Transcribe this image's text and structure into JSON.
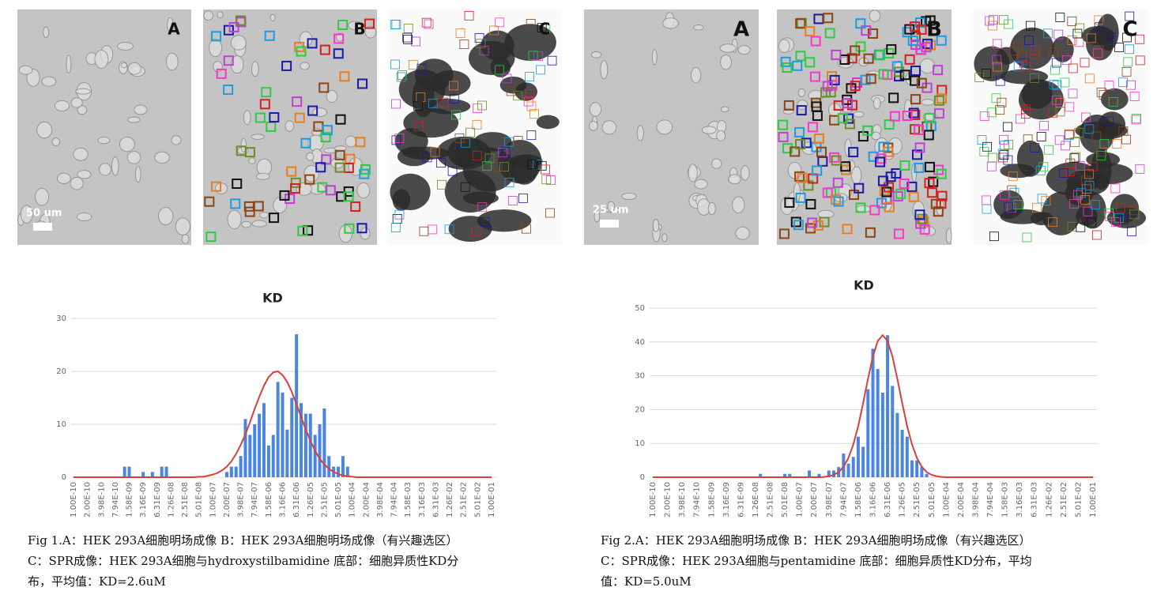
{
  "figures": [
    {
      "panels": [
        "A",
        "B",
        "C"
      ],
      "scale_bar": "50 um",
      "caption": [
        "Fig 1.A：HEK 293A细胞明场成像 B：HEK 293A细胞明场成像（有兴趣选区）",
        "C：SPR成像：HEK 293A细胞与hydroxystilbamidine  底部：细胞异质性KD分",
        "布，平均值：KD=2.6uM"
      ]
    },
    {
      "panels": [
        "A",
        "B",
        "C"
      ],
      "scale_bar": "25 um",
      "caption": [
        "Fig 2.A：HEK 293A细胞明场成像 B：HEK 293A细胞明场成像（有兴趣选区）",
        "C：SPR成像：HEK 293A细胞与pentamidine  底部：细胞异质性KD分布，平均",
        "值：KD=5.0uM"
      ]
    }
  ],
  "chart_data": [
    {
      "type": "bar",
      "title": "KD",
      "ylim": [
        0,
        30
      ],
      "yticks": [
        0,
        10,
        20,
        30
      ],
      "grid": true,
      "categories": [
        "1.00E-10",
        null,
        null,
        "2.00E-10",
        null,
        null,
        "3.98E-10",
        null,
        null,
        "7.94E-10",
        null,
        null,
        "1.58E-09",
        null,
        null,
        "3.16E-09",
        null,
        null,
        "6.31E-09",
        null,
        null,
        "1.26E-08",
        null,
        null,
        "2.51E-08",
        null,
        null,
        "5.01E-08",
        null,
        null,
        "1.00E-07",
        null,
        null,
        "2.00E-07",
        null,
        null,
        "3.98E-07",
        null,
        null,
        "7.94E-07",
        null,
        null,
        "1.58E-06",
        null,
        null,
        "3.16E-06",
        null,
        null,
        "6.31E-06",
        null,
        null,
        "1.26E-05",
        null,
        null,
        "2.51E-05",
        null,
        null,
        "5.01E-05",
        null,
        null,
        "1.00E-04",
        null,
        null,
        "2.00E-04",
        null,
        null,
        "3.98E-04",
        null,
        null,
        "7.94E-04",
        null,
        null,
        "1.58E-03",
        null,
        null,
        "3.16E-03",
        null,
        null,
        "6.31E-03",
        null,
        null,
        "1.26E-02",
        null,
        null,
        "2.51E-02",
        null,
        null,
        "5.01E-02",
        null,
        null,
        "1.00E-01"
      ],
      "series": [
        {
          "type": "bar",
          "color": "#4a86e0",
          "values": [
            0,
            0,
            0,
            0,
            0,
            0,
            0,
            0,
            0,
            0,
            0,
            2,
            2,
            0,
            0,
            1,
            0,
            1,
            0,
            2,
            2,
            0,
            0,
            0,
            0,
            0,
            0,
            0,
            0,
            0,
            0,
            0,
            0,
            1,
            2,
            2,
            4,
            11,
            8,
            10,
            12,
            14,
            6,
            8,
            18,
            16,
            9,
            15,
            27,
            14,
            12,
            12,
            8,
            10,
            13,
            4,
            2,
            2,
            4,
            2,
            0,
            0,
            0,
            0,
            0,
            0,
            0,
            0,
            0,
            0,
            0,
            0,
            0,
            0,
            0,
            0,
            0,
            0,
            0,
            0,
            0,
            0,
            0,
            0,
            0,
            0,
            0,
            0,
            0,
            0,
            0
          ]
        },
        {
          "type": "line",
          "color": "#d9403a",
          "values": [
            0,
            0,
            0,
            0,
            0,
            0,
            0,
            0,
            0,
            0,
            0,
            0,
            0,
            0,
            0,
            0,
            0,
            0,
            0,
            0,
            0,
            0,
            0,
            0,
            0,
            0,
            0,
            0.1,
            0.1,
            0.3,
            0.5,
            0.8,
            1.3,
            2.0,
            3.0,
            4.4,
            6.1,
            8.1,
            10.4,
            12.9,
            15.2,
            17.3,
            18.9,
            19.8,
            20.0,
            19.3,
            18.0,
            16.1,
            13.8,
            11.4,
            9.0,
            6.9,
            5.0,
            3.5,
            2.4,
            1.6,
            1.0,
            0.6,
            0.3,
            0.2,
            0.1,
            0,
            0,
            0,
            0,
            0,
            0,
            0,
            0,
            0,
            0,
            0,
            0,
            0,
            0,
            0,
            0,
            0,
            0,
            0,
            0,
            0,
            0,
            0,
            0,
            0,
            0,
            0,
            0,
            0,
            0
          ]
        }
      ]
    },
    {
      "type": "bar",
      "title": "KD",
      "ylim": [
        0,
        50
      ],
      "yticks": [
        0,
        10,
        20,
        30,
        40,
        50
      ],
      "grid": true,
      "categories": [
        "1.00E-10",
        null,
        null,
        "2.00E-10",
        null,
        null,
        "3.98E-10",
        null,
        null,
        "7.94E-10",
        null,
        null,
        "1.58E-09",
        null,
        null,
        "3.16E-09",
        null,
        null,
        "6.31E-09",
        null,
        null,
        "1.26E-08",
        null,
        null,
        "2.51E-08",
        null,
        null,
        "5.01E-08",
        null,
        null,
        "1.00E-07",
        null,
        null,
        "2.00E-07",
        null,
        null,
        "3.98E-07",
        null,
        null,
        "7.94E-07",
        null,
        null,
        "1.58E-06",
        null,
        null,
        "3.16E-06",
        null,
        null,
        "6.31E-06",
        null,
        null,
        "1.26E-05",
        null,
        null,
        "2.51E-05",
        null,
        null,
        "5.01E-05",
        null,
        null,
        "1.00E-04",
        null,
        null,
        "2.00E-04",
        null,
        null,
        "3.98E-04",
        null,
        null,
        "7.94E-04",
        null,
        null,
        "1.58E-03",
        null,
        null,
        "3.16E-03",
        null,
        null,
        "6.31E-03",
        null,
        null,
        "1.26E-02",
        null,
        null,
        "2.51E-02",
        null,
        null,
        "5.01E-02",
        null,
        null,
        "1.00E-01"
      ],
      "series": [
        {
          "type": "bar",
          "color": "#4a86e0",
          "values": [
            0,
            0,
            0,
            0,
            0,
            0,
            0,
            0,
            0,
            0,
            0,
            0,
            0,
            0,
            0,
            0,
            0,
            0,
            0,
            0,
            0,
            0,
            1,
            0,
            0,
            0,
            0,
            1,
            1,
            0,
            0,
            0,
            2,
            0,
            1,
            0,
            2,
            2,
            3,
            7,
            4,
            6,
            12,
            9,
            26,
            38,
            32,
            25,
            42,
            27,
            19,
            14,
            12,
            5,
            5,
            3,
            1,
            0,
            0,
            0,
            0,
            0,
            0,
            0,
            0,
            0,
            0,
            0,
            0,
            0,
            0,
            0,
            0,
            0,
            0,
            0,
            0,
            0,
            0,
            0,
            0,
            0,
            0,
            0,
            0,
            0,
            0,
            0,
            0,
            0,
            0
          ]
        },
        {
          "type": "line",
          "color": "#d9403a",
          "values": [
            0,
            0,
            0,
            0,
            0,
            0,
            0,
            0,
            0,
            0,
            0,
            0,
            0,
            0,
            0,
            0,
            0,
            0,
            0,
            0,
            0,
            0,
            0,
            0,
            0,
            0,
            0,
            0,
            0,
            0,
            0,
            0,
            0,
            0,
            0,
            0.1,
            0.3,
            0.7,
            1.5,
            3.1,
            5.7,
            9.7,
            15.1,
            21.9,
            29.1,
            35.7,
            40.3,
            42,
            40.3,
            35.7,
            29.1,
            21.9,
            15.1,
            9.7,
            5.7,
            3.1,
            1.5,
            0.7,
            0.3,
            0.1,
            0,
            0,
            0,
            0,
            0,
            0,
            0,
            0,
            0,
            0,
            0,
            0,
            0,
            0,
            0,
            0,
            0,
            0,
            0,
            0,
            0,
            0,
            0,
            0,
            0,
            0,
            0,
            0,
            0,
            0,
            0
          ]
        }
      ]
    }
  ]
}
